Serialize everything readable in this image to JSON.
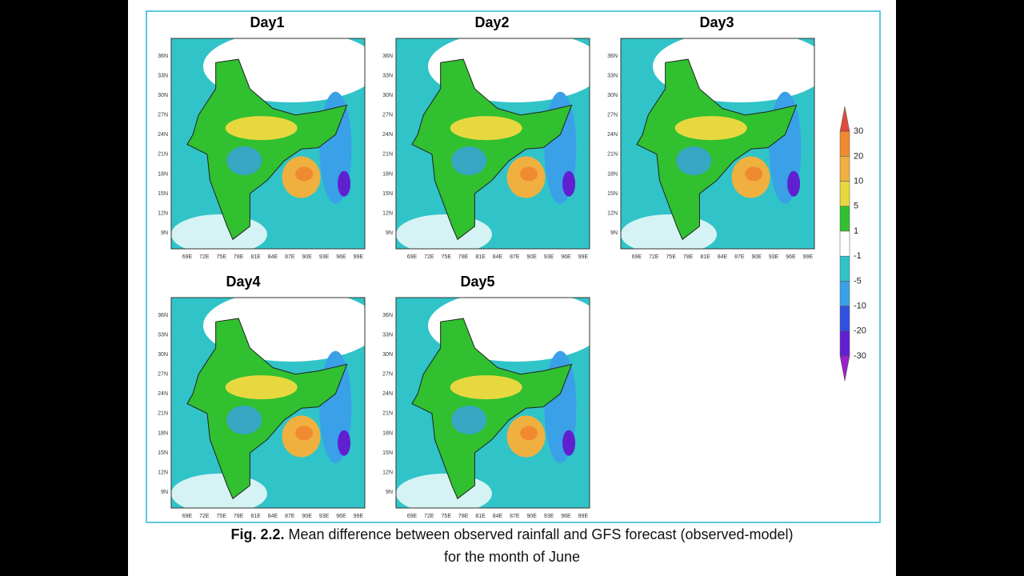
{
  "figure": {
    "panels": [
      {
        "title": "Day1"
      },
      {
        "title": "Day2"
      },
      {
        "title": "Day3"
      },
      {
        "title": "Day4"
      },
      {
        "title": "Day5"
      }
    ],
    "lat_labels": [
      "36N",
      "33N",
      "30N",
      "27N",
      "24N",
      "21N",
      "18N",
      "15N",
      "12N",
      "9N"
    ],
    "lon_labels": [
      "69E",
      "72E",
      "75E",
      "78E",
      "81E",
      "84E",
      "87E",
      "90E",
      "93E",
      "96E",
      "99E"
    ],
    "colorbar": {
      "labels": [
        "30",
        "20",
        "10",
        "5",
        "1",
        "-1",
        "-5",
        "-10",
        "-20",
        "-30"
      ],
      "colors": [
        "#e04a3a",
        "#f08a30",
        "#f0b040",
        "#e8d840",
        "#30c030",
        "#ffffff",
        "#30c4c8",
        "#3aa0e8",
        "#3050e0",
        "#6020d0",
        "#9a20c8"
      ]
    }
  },
  "caption": {
    "label": "Fig. 2.2.",
    "text": "Mean difference between observed rainfall and GFS forecast (observed-model)",
    "line2": "for the month of  June"
  }
}
